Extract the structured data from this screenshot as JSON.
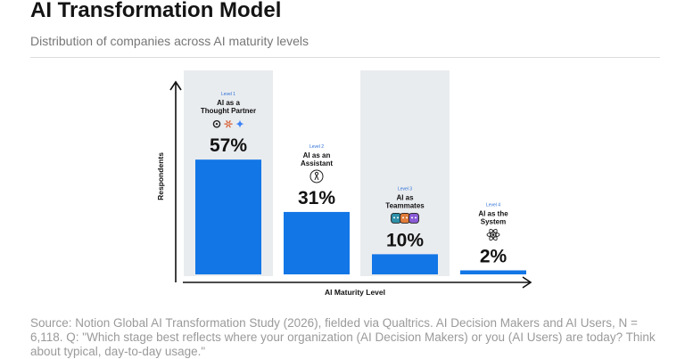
{
  "header": {
    "title": "AI Transformation Model",
    "subtitle": "Distribution of companies across AI maturity levels"
  },
  "source_note": "Source: Notion Global AI Transformation Study (2026), fielded via Qualtrics. AI Decision Makers and AI Users, N = 6,118. Q: \"Which stage best reflects where your organization (AI Decision Makers) or you (AI Users) are today? Think about typical, day-to-day usage.\"",
  "chart_data": {
    "type": "bar",
    "title": "AI Transformation Model",
    "subtitle": "Distribution of companies across AI maturity levels",
    "xlabel": "AI Maturity Level",
    "ylabel": "Respondents",
    "ylim": [
      0,
      65
    ],
    "grid": false,
    "bar_color": "#1276e6",
    "highlight_color": "#e9ecef",
    "categories": [
      {
        "level": "Level 1",
        "name": [
          "AI as a",
          "Thought Partner"
        ],
        "value": 57,
        "label": "57%",
        "highlighted": true,
        "icon": "assistant-logos-icon"
      },
      {
        "level": "Level 2",
        "name": [
          "AI as an",
          "Assistant"
        ],
        "value": 31,
        "label": "31%",
        "highlighted": false,
        "icon": "person-hand-icon"
      },
      {
        "level": "Level 3",
        "name": [
          "AI as",
          "Teammates"
        ],
        "value": 10,
        "label": "10%",
        "highlighted": true,
        "icon": "agent-faces-icon"
      },
      {
        "level": "Level 4",
        "name": [
          "AI as the",
          "System"
        ],
        "value": 2,
        "label": "2%",
        "highlighted": false,
        "icon": "atom-icon"
      }
    ]
  }
}
